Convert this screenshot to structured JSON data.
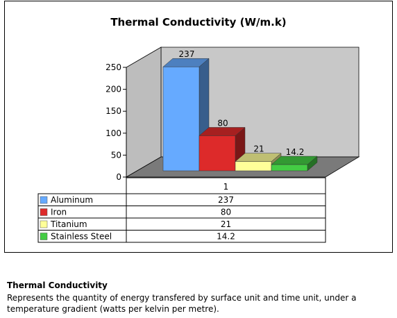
{
  "chart_data": {
    "type": "bar",
    "title": "Thermal Conductivity (W/m.k)",
    "categories": [
      "1"
    ],
    "series": [
      {
        "name": "Aluminum",
        "values": [
          237
        ],
        "color": "#66aaff"
      },
      {
        "name": "Iron",
        "values": [
          80
        ],
        "color": "#dd2a2a"
      },
      {
        "name": "Titanium",
        "values": [
          21
        ],
        "color": "#ffff99"
      },
      {
        "name": "Stainless Steel",
        "values": [
          14.2
        ],
        "color": "#44cc44"
      }
    ],
    "y_ticks": [
      "0",
      "50",
      "100",
      "150",
      "200",
      "250"
    ],
    "ylim": [
      0,
      250
    ],
    "data_labels": [
      "237",
      "80",
      "21",
      "14.2"
    ],
    "table": {
      "header": "1",
      "rows": [
        {
          "name": "Aluminum",
          "value": "237"
        },
        {
          "name": "Iron",
          "value": "80"
        },
        {
          "name": "Titanium",
          "value": "21"
        },
        {
          "name": "Stainless Steel",
          "value": "14.2"
        }
      ]
    },
    "grid": false,
    "legend": "data-table"
  },
  "description": {
    "title": "Thermal Conductivity",
    "text": "Represents the quantity of energy transfered by surface unit and time unit, under a temperature gradient (watts per kelvin per metre)."
  }
}
